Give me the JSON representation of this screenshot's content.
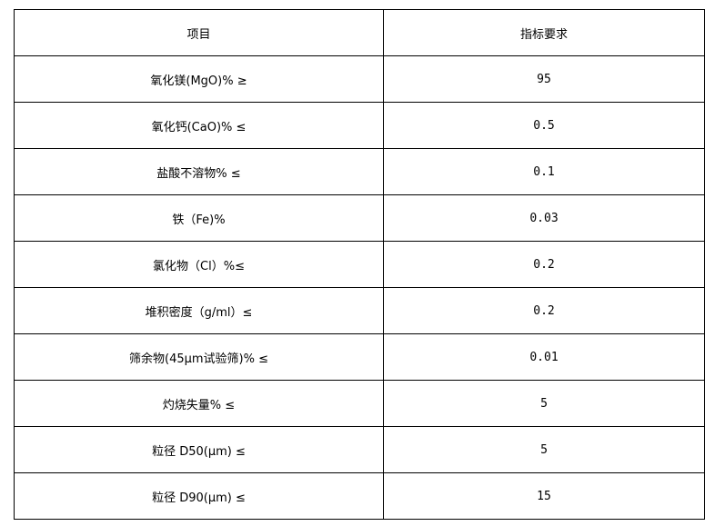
{
  "table": {
    "headers": [
      "项目",
      "指标要求"
    ],
    "rows": [
      {
        "item": "氧化镁(MgO)% ≥",
        "value": "95"
      },
      {
        "item": "氧化钙(CaO)% ≤",
        "value": "0.5"
      },
      {
        "item": "盐酸不溶物% ≤",
        "value": "0.1"
      },
      {
        "item": "铁（Fe)%",
        "value": "0.03"
      },
      {
        "item": "氯化物（Cl）%≤",
        "value": "0.2"
      },
      {
        "item": "堆积密度（g/ml）≤",
        "value": "0.2"
      },
      {
        "item": "筛余物(45μm试验筛)% ≤",
        "value": "0.01"
      },
      {
        "item": "灼烧失量% ≤",
        "value": "5"
      },
      {
        "item": "粒径 D50(μm) ≤",
        "value": "5"
      },
      {
        "item": "粒径 D90(μm) ≤",
        "value": "15"
      }
    ]
  }
}
